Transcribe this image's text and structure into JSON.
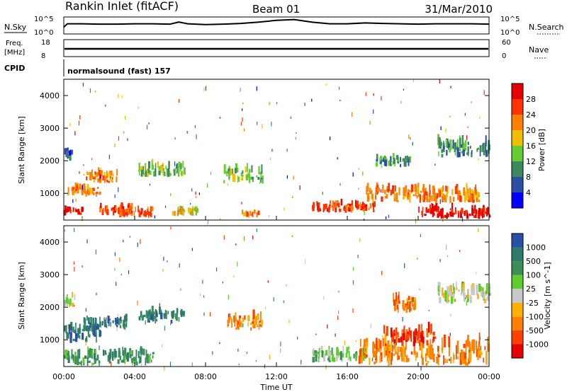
{
  "header": {
    "station": "Rankin Inlet (fitACF)",
    "beam": "Beam 01",
    "date": "31/Mar/2010"
  },
  "noise_panel": {
    "left_label": "N.Sky",
    "right_label": "N.Search",
    "left_ticks": [
      "10^5",
      "10^0"
    ],
    "right_ticks": [
      "10^5",
      "10^0"
    ]
  },
  "freq_panel": {
    "left_label_1": "Freq.",
    "left_label_2": "[MHz]",
    "right_label": "Nave",
    "left_ticks": [
      "18",
      "8"
    ],
    "right_ticks": [
      "60",
      "0"
    ]
  },
  "cpid": {
    "label": "CPID",
    "text": "normalsound (fast) 157"
  },
  "power_panel": {
    "ylabel": "Slant Range [km]",
    "colorbar_label": "Power [dB]",
    "colorbar_ticks": [
      "4",
      "8",
      "12",
      "16",
      "20",
      "24",
      "28"
    ],
    "colors": [
      "#0000ff",
      "#2a4fa6",
      "#3c8a5c",
      "#66cc33",
      "#f0c000",
      "#ff8000",
      "#ff3300",
      "#e60000"
    ]
  },
  "velocity_panel": {
    "ylabel": "Slant Range [km]",
    "colorbar_label": "Velocity [m s^-1]",
    "colorbar_ticks": [
      "1000",
      "500",
      "100",
      "25",
      "-25",
      "-100",
      "-500",
      "-1000"
    ],
    "colors": [
      "#2a4fa6",
      "#2e7b6e",
      "#3e8e5a",
      "#5fcc2e",
      "#c8c8c8",
      "#ffb000",
      "#ff8000",
      "#ff4000",
      "#e60000"
    ]
  },
  "xaxis": {
    "label": "Time UT",
    "ticks": [
      "00:00",
      "04:00",
      "08:00",
      "12:00",
      "16:00",
      "20:00",
      "00:00"
    ]
  },
  "chart_data": [
    {
      "type": "line",
      "name": "noise",
      "x_hours": [
        0,
        0.2,
        1,
        2,
        3,
        4,
        5,
        6,
        6.5,
        7,
        8,
        9,
        10,
        11,
        12,
        13,
        14,
        15,
        16,
        17,
        18,
        19,
        20,
        21,
        22,
        23,
        24
      ],
      "y_rel": [
        0.4,
        0.6,
        0.6,
        0.58,
        0.58,
        0.6,
        0.6,
        0.58,
        0.7,
        0.6,
        0.55,
        0.58,
        0.62,
        0.7,
        0.8,
        0.85,
        0.7,
        0.6,
        0.6,
        0.65,
        0.62,
        0.6,
        0.58,
        0.6,
        0.6,
        0.6,
        0.58
      ]
    },
    {
      "type": "heatmap",
      "name": "power",
      "ylim": [
        180,
        4500
      ],
      "ylabel": "Slant Range [km]",
      "xlim": [
        0,
        24
      ],
      "blobs": [
        {
          "t0": 0.0,
          "t1": 2.0,
          "r0": 900,
          "r1": 1300,
          "lvl": 5
        },
        {
          "t0": 0.0,
          "t1": 1.0,
          "r0": 300,
          "r1": 600,
          "lvl": 7
        },
        {
          "t0": 1.2,
          "t1": 3.0,
          "r0": 1300,
          "r1": 1800,
          "lvl": 5
        },
        {
          "t0": 2.0,
          "t1": 3.8,
          "r0": 300,
          "r1": 700,
          "lvl": 6
        },
        {
          "t0": 3.0,
          "t1": 5.0,
          "r0": 250,
          "r1": 600,
          "lvl": 6
        },
        {
          "t0": 0.0,
          "t1": 0.5,
          "r0": 2000,
          "r1": 2500,
          "lvl": 1
        },
        {
          "t0": 4.2,
          "t1": 6.8,
          "r0": 1500,
          "r1": 2000,
          "lvl": 3
        },
        {
          "t0": 6.0,
          "t1": 7.5,
          "r0": 300,
          "r1": 600,
          "lvl": 4
        },
        {
          "t0": 9.0,
          "t1": 11.2,
          "r0": 1300,
          "r1": 1900,
          "lvl": 3
        },
        {
          "t0": 10.0,
          "t1": 11.0,
          "r0": 250,
          "r1": 500,
          "lvl": 5
        },
        {
          "t0": 14.0,
          "t1": 17.5,
          "r0": 400,
          "r1": 800,
          "lvl": 6
        },
        {
          "t0": 17.0,
          "t1": 23.5,
          "r0": 700,
          "r1": 1300,
          "lvl": 5
        },
        {
          "t0": 20.0,
          "t1": 24.0,
          "r0": 200,
          "r1": 700,
          "lvl": 7
        },
        {
          "t0": 17.5,
          "t1": 19.5,
          "r0": 1800,
          "r1": 2200,
          "lvl": 2
        },
        {
          "t0": 21.0,
          "t1": 24.0,
          "r0": 2100,
          "r1": 2800,
          "lvl": 2
        }
      ]
    },
    {
      "type": "heatmap",
      "name": "velocity",
      "ylim": [
        180,
        4500
      ],
      "ylabel": "Slant Range [km]",
      "xlim": [
        0,
        24
      ],
      "blobs": [
        {
          "t0": 0.0,
          "t1": 2.0,
          "r0": 900,
          "r1": 1600,
          "lvl": 1
        },
        {
          "t0": 1.0,
          "t1": 3.5,
          "r0": 1300,
          "r1": 1800,
          "lvl": 1
        },
        {
          "t0": 0.0,
          "t1": 5.0,
          "r0": 200,
          "r1": 800,
          "lvl": 2
        },
        {
          "t0": 0.0,
          "t1": 0.6,
          "r0": 2000,
          "r1": 2500,
          "lvl": 4
        },
        {
          "t0": 4.2,
          "t1": 6.8,
          "r0": 1500,
          "r1": 2000,
          "lvl": 1
        },
        {
          "t0": 9.2,
          "t1": 11.2,
          "r0": 1300,
          "r1": 1900,
          "lvl": 6
        },
        {
          "t0": 14.0,
          "t1": 17.0,
          "r0": 300,
          "r1": 800,
          "lvl": 3
        },
        {
          "t0": 16.5,
          "t1": 24.0,
          "r0": 200,
          "r1": 1200,
          "lvl": 6
        },
        {
          "t0": 18.0,
          "t1": 21.0,
          "r0": 800,
          "r1": 1500,
          "lvl": 7
        },
        {
          "t0": 18.5,
          "t1": 19.8,
          "r0": 1800,
          "r1": 2500,
          "lvl": 6
        },
        {
          "t0": 21.0,
          "t1": 24.0,
          "r0": 2100,
          "r1": 2800,
          "lvl": 4
        }
      ]
    }
  ]
}
